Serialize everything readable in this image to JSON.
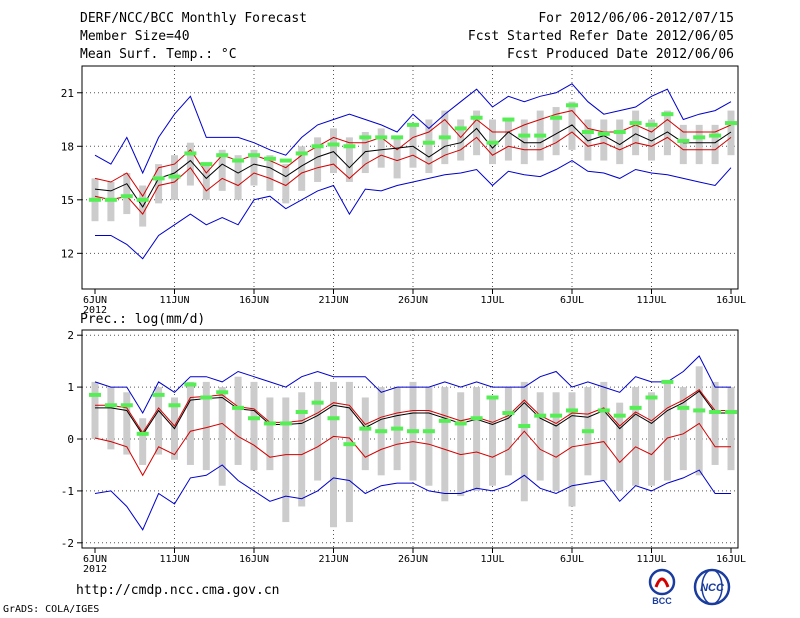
{
  "header": {
    "title": "DERF/NCC/BCC Monthly Forecast",
    "member_size": "Member Size=40",
    "variable": "Mean Surf. Temp.: °C",
    "period": "For 2012/06/06-2012/07/15",
    "started": "Fcst Started Refer Date 2012/06/05",
    "produced": "Fcst Produced Date 2012/06/06"
  },
  "footer": {
    "url": "http://cmdp.ncc.cma.gov.cn",
    "credit": "GrADS: COLA/IGES",
    "logo_left": "BCC",
    "logo_right": "NCC"
  },
  "colors": {
    "envelope": "#0000cc",
    "mean": "#000000",
    "spread": "#d40000",
    "box": "#cccccc",
    "climatology": "#55ee55",
    "grid": "#555555"
  },
  "chart_data": [
    {
      "type": "line",
      "title": "Mean Surf. Temp.: °C",
      "ylabel": "°C",
      "ylim": [
        10,
        22.5
      ],
      "yticks": [
        12,
        15,
        18,
        21
      ],
      "x_tick_labels": [
        "6JUN",
        "11JUN",
        "16JUN",
        "21JUN",
        "26JUN",
        "1JUL",
        "6JUL",
        "11JUL",
        "16JUL"
      ],
      "year_label": "2012",
      "grid": true,
      "series": [
        {
          "name": "max",
          "values": [
            17.5,
            17.0,
            18.5,
            16.5,
            18.5,
            19.8,
            20.8,
            18.5,
            18.5,
            18.5,
            18.2,
            17.8,
            17.5,
            18.5,
            19.2,
            19.5,
            19.8,
            19.5,
            19.2,
            18.8,
            19.8,
            19.0,
            19.8,
            20.5,
            21.2,
            20.2,
            20.8,
            20.5,
            20.8,
            21.0,
            21.5,
            20.5,
            19.8,
            20.0,
            20.2,
            20.8,
            21.2,
            19.5,
            19.8,
            20.0,
            20.5
          ]
        },
        {
          "name": "upper",
          "values": [
            16.2,
            16.0,
            16.5,
            15.2,
            16.8,
            17.0,
            17.8,
            16.5,
            17.5,
            17.2,
            17.5,
            17.2,
            16.8,
            17.5,
            18.0,
            18.5,
            18.2,
            18.2,
            18.5,
            17.8,
            18.5,
            18.8,
            19.5,
            18.5,
            19.5,
            18.8,
            18.8,
            19.2,
            19.5,
            19.8,
            20.0,
            19.0,
            18.8,
            18.8,
            19.2,
            18.8,
            19.5,
            18.8,
            18.8,
            18.8,
            19.2
          ]
        },
        {
          "name": "mean",
          "values": [
            15.6,
            15.5,
            15.9,
            14.6,
            16.2,
            16.5,
            17.2,
            16.2,
            17.0,
            16.5,
            17.0,
            16.8,
            16.3,
            16.9,
            17.4,
            17.7,
            16.8,
            17.7,
            17.8,
            17.9,
            18.0,
            17.4,
            18.0,
            18.2,
            19.0,
            17.9,
            18.8,
            18.2,
            18.2,
            18.7,
            19.2,
            18.3,
            18.6,
            18.1,
            18.7,
            18.3,
            18.8,
            18.2,
            18.2,
            18.2,
            18.8
          ]
        },
        {
          "name": "lower",
          "values": [
            15.2,
            15.0,
            15.2,
            14.2,
            15.8,
            16.0,
            16.8,
            15.5,
            16.2,
            15.8,
            16.5,
            16.2,
            15.8,
            16.5,
            16.8,
            17.0,
            16.2,
            17.0,
            17.5,
            17.2,
            17.5,
            17.0,
            17.5,
            17.8,
            18.5,
            17.5,
            18.0,
            17.8,
            17.8,
            18.2,
            18.8,
            18.0,
            18.2,
            17.8,
            18.2,
            18.0,
            18.5,
            17.8,
            17.8,
            17.8,
            18.5
          ]
        },
        {
          "name": "min",
          "values": [
            13.0,
            13.0,
            12.5,
            11.7,
            13.0,
            13.6,
            14.2,
            13.6,
            14.0,
            13.6,
            15.0,
            15.2,
            14.5,
            15.0,
            15.5,
            15.8,
            14.2,
            15.6,
            15.5,
            15.8,
            16.0,
            16.2,
            16.4,
            16.5,
            16.7,
            15.8,
            16.6,
            16.4,
            16.3,
            16.7,
            17.2,
            16.6,
            16.5,
            16.2,
            16.7,
            16.5,
            16.4,
            16.2,
            16.0,
            15.8,
            16.8
          ]
        },
        {
          "name": "box_top",
          "values": [
            16.2,
            16.0,
            16.5,
            15.8,
            17.0,
            17.5,
            18.2,
            17.0,
            17.8,
            17.5,
            17.8,
            17.5,
            17.0,
            18.0,
            18.5,
            19.0,
            18.5,
            18.8,
            19.0,
            18.5,
            19.2,
            19.5,
            20.0,
            19.5,
            20.0,
            19.5,
            19.5,
            19.5,
            20.0,
            20.2,
            20.5,
            19.5,
            19.5,
            19.5,
            20.0,
            19.5,
            20.0,
            19.2,
            19.2,
            19.2,
            20.0
          ]
        },
        {
          "name": "box_bottom",
          "values": [
            13.8,
            13.8,
            14.2,
            13.5,
            14.8,
            15.0,
            15.8,
            15.0,
            15.5,
            15.0,
            15.8,
            15.5,
            14.8,
            15.5,
            16.0,
            16.5,
            16.0,
            16.5,
            16.8,
            16.2,
            16.8,
            16.5,
            17.0,
            17.2,
            17.5,
            17.0,
            17.2,
            17.0,
            17.2,
            17.5,
            17.8,
            17.2,
            17.2,
            17.0,
            17.5,
            17.2,
            17.5,
            17.0,
            17.0,
            17.0,
            17.5
          ]
        },
        {
          "name": "climatology",
          "values": [
            15.0,
            15.0,
            15.2,
            15.0,
            16.2,
            16.3,
            17.6,
            17.0,
            17.5,
            17.2,
            17.5,
            17.3,
            17.2,
            17.6,
            18.0,
            18.1,
            18.0,
            18.5,
            18.5,
            18.5,
            19.2,
            18.2,
            18.5,
            19.0,
            19.6,
            18.2,
            19.5,
            18.6,
            18.6,
            19.6,
            20.3,
            18.8,
            18.7,
            18.8,
            19.3,
            19.2,
            19.8,
            18.3,
            18.5,
            18.6,
            19.3
          ]
        }
      ]
    },
    {
      "type": "line",
      "title": "Prec.: log(mm/d)",
      "ylabel": "log(mm/d)",
      "ylim": [
        -2.1,
        2.1
      ],
      "yticks": [
        -2,
        -1,
        0,
        1,
        2
      ],
      "x_tick_labels": [
        "6JUN",
        "11JUN",
        "16JUN",
        "21JUN",
        "26JUN",
        "1JUL",
        "6JUL",
        "11JUL",
        "16JUL"
      ],
      "year_label": "2012",
      "grid": true,
      "series": [
        {
          "name": "max",
          "values": [
            1.1,
            1.0,
            1.0,
            0.5,
            1.1,
            0.9,
            1.2,
            1.2,
            1.1,
            1.3,
            1.2,
            1.1,
            1.0,
            1.2,
            1.3,
            1.2,
            1.2,
            1.2,
            0.9,
            1.0,
            1.0,
            1.0,
            1.1,
            1.0,
            1.1,
            1.0,
            1.0,
            1.0,
            1.2,
            1.3,
            1.0,
            1.1,
            1.0,
            0.9,
            1.2,
            1.1,
            1.1,
            1.3,
            1.6,
            1.0,
            1.0
          ]
        },
        {
          "name": "upper",
          "values": [
            0.65,
            0.65,
            0.6,
            0.12,
            0.6,
            0.25,
            0.8,
            0.82,
            0.85,
            0.62,
            0.58,
            0.32,
            0.32,
            0.35,
            0.5,
            0.7,
            0.65,
            0.28,
            0.42,
            0.5,
            0.55,
            0.55,
            0.45,
            0.35,
            0.42,
            0.32,
            0.45,
            0.75,
            0.45,
            0.3,
            0.5,
            0.48,
            0.6,
            0.25,
            0.52,
            0.35,
            0.6,
            0.75,
            0.95,
            0.55,
            0.55
          ]
        },
        {
          "name": "mean",
          "values": [
            0.6,
            0.6,
            0.55,
            0.08,
            0.55,
            0.2,
            0.75,
            0.78,
            0.8,
            0.58,
            0.55,
            0.28,
            0.28,
            0.3,
            0.45,
            0.65,
            0.6,
            0.22,
            0.38,
            0.45,
            0.5,
            0.5,
            0.4,
            0.3,
            0.38,
            0.28,
            0.4,
            0.7,
            0.4,
            0.25,
            0.45,
            0.42,
            0.55,
            0.2,
            0.48,
            0.3,
            0.55,
            0.7,
            0.92,
            0.5,
            0.5
          ]
        },
        {
          "name": "lower",
          "values": [
            0.02,
            -0.05,
            -0.15,
            -0.7,
            -0.15,
            -0.3,
            0.15,
            0.22,
            0.3,
            0.05,
            -0.12,
            -0.35,
            -0.3,
            -0.3,
            -0.15,
            0.05,
            0.02,
            -0.35,
            -0.2,
            -0.1,
            -0.05,
            -0.1,
            -0.2,
            -0.3,
            -0.25,
            -0.35,
            -0.2,
            0.15,
            -0.2,
            -0.35,
            -0.15,
            -0.1,
            -0.05,
            -0.45,
            -0.15,
            -0.3,
            0.02,
            0.1,
            0.3,
            -0.15,
            -0.15
          ]
        },
        {
          "name": "min",
          "values": [
            -1.05,
            -1.0,
            -1.3,
            -1.75,
            -1.05,
            -1.25,
            -0.75,
            -0.7,
            -0.5,
            -0.8,
            -1.0,
            -1.2,
            -1.1,
            -1.15,
            -1.0,
            -0.75,
            -0.8,
            -1.05,
            -0.9,
            -0.85,
            -0.85,
            -1.0,
            -1.05,
            -1.05,
            -0.95,
            -1.0,
            -0.9,
            -0.7,
            -0.95,
            -1.05,
            -0.9,
            -0.85,
            -0.8,
            -1.2,
            -0.9,
            -1.0,
            -0.85,
            -0.75,
            -0.6,
            -1.05,
            -1.05
          ]
        },
        {
          "name": "box_top",
          "values": [
            1.1,
            1.0,
            0.9,
            0.4,
            1.0,
            0.8,
            1.1,
            1.1,
            1.0,
            1.2,
            1.1,
            0.8,
            0.8,
            0.9,
            1.1,
            1.1,
            1.1,
            0.8,
            1.0,
            1.0,
            1.1,
            1.0,
            1.0,
            0.9,
            1.0,
            0.8,
            1.0,
            1.1,
            0.9,
            0.9,
            0.9,
            1.0,
            1.1,
            0.7,
            1.0,
            0.9,
            1.1,
            1.0,
            1.4,
            1.1,
            1.0
          ]
        },
        {
          "name": "box_bottom",
          "values": [
            0.0,
            -0.2,
            -0.3,
            -0.5,
            -0.3,
            -0.4,
            -0.5,
            -0.6,
            -0.9,
            -0.5,
            -0.6,
            -0.6,
            -1.6,
            -1.3,
            -0.8,
            -1.7,
            -1.6,
            -0.6,
            -0.7,
            -0.6,
            -0.8,
            -0.9,
            -1.2,
            -1.1,
            -1.0,
            -0.9,
            -0.7,
            -1.2,
            -0.8,
            -1.0,
            -1.3,
            -0.7,
            -0.8,
            -1.0,
            -0.9,
            -0.9,
            -0.8,
            -0.6,
            -0.7,
            -0.5,
            -0.6
          ]
        },
        {
          "name": "climatology",
          "values": [
            0.85,
            0.65,
            0.65,
            0.1,
            0.85,
            0.65,
            1.05,
            0.8,
            0.9,
            0.6,
            0.4,
            0.3,
            0.3,
            0.52,
            0.7,
            0.4,
            -0.1,
            0.2,
            0.15,
            0.2,
            0.15,
            0.15,
            0.35,
            0.3,
            0.4,
            0.8,
            0.5,
            0.25,
            0.45,
            0.45,
            0.55,
            0.15,
            0.55,
            0.45,
            0.6,
            0.8,
            1.1,
            0.6,
            0.55,
            0.52,
            0.52
          ]
        }
      ]
    }
  ]
}
